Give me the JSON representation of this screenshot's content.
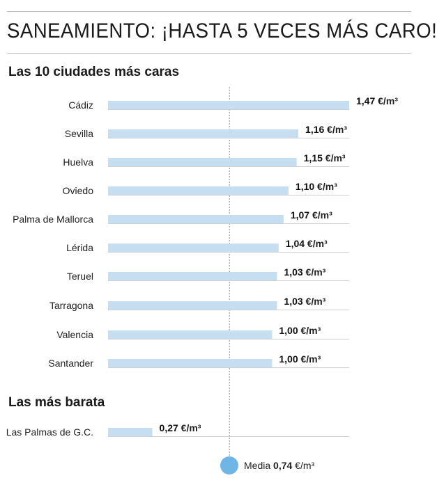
{
  "header": {
    "title": "SANEAMIENTO: ¡HASTA 5 VECES MÁS CARO!"
  },
  "colors": {
    "bar": "#c6def2",
    "average_dot": "#6fb6e6",
    "track": "#cfcfcf",
    "average_line": "#8a8a8a"
  },
  "chart_data": {
    "type": "bar",
    "orientation": "horizontal",
    "title": "SANEAMIENTO: ¡HASTA 5 VECES MÁS CARO!",
    "unit": "€/m³",
    "xlim": [
      0,
      1.47
    ],
    "groups": [
      {
        "label": "Las 10 ciudades más caras",
        "categories": [
          "Cádiz",
          "Sevilla",
          "Huelva",
          "Oviedo",
          "Palma de Mallorca",
          "Lérida",
          "Teruel",
          "Tarragona",
          "Valencia",
          "Santander"
        ],
        "values": [
          1.47,
          1.16,
          1.15,
          1.1,
          1.07,
          1.04,
          1.03,
          1.03,
          1.0,
          1.0
        ],
        "value_labels": [
          "1,47",
          "1,16",
          "1,15",
          "1,10",
          "1,07",
          "1,04",
          "1,03",
          "1,03",
          "1,00",
          "1,00"
        ]
      },
      {
        "label": "Las más barata",
        "categories": [
          "Las Palmas de G.C."
        ],
        "values": [
          0.27
        ],
        "value_labels": [
          "0,27"
        ]
      }
    ],
    "reference_line": {
      "label": "Media",
      "value": 0.74,
      "value_label": "0,74"
    }
  }
}
